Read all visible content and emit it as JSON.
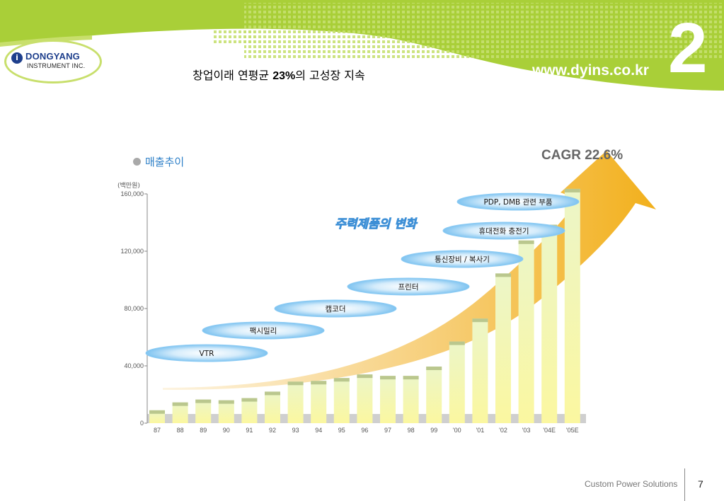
{
  "header": {
    "logo_name": "DONGYANG",
    "logo_sub": "INSTRUMENT INC.",
    "title_prefix": "창업이래 연평균 ",
    "title_highlight": "23%",
    "title_suffix": "의 고성장 지속",
    "site_url": "www.dyins.co.kr",
    "section_number": "2"
  },
  "section": {
    "title": "매출추이"
  },
  "footer": {
    "tagline": "Custom Power Solutions",
    "page_number": "7"
  },
  "colors": {
    "brand_green": "#a9cf38",
    "bar_top": "#ecf6c8",
    "bar_bottom": "#fbf7a0",
    "arrow_orange": "#f3b224",
    "ellipse_blue": "#8ccbf4",
    "title_blue": "#2e80c8"
  },
  "chart_data": {
    "type": "bar",
    "y_unit_label": "(백만원)",
    "categories": [
      "87",
      "88",
      "89",
      "90",
      "91",
      "92",
      "93",
      "94",
      "95",
      "96",
      "97",
      "98",
      "99",
      "'00",
      "'01",
      "'02",
      "'03",
      "'04E",
      "'05E"
    ],
    "values": [
      9000,
      14500,
      16500,
      16000,
      17500,
      22000,
      29000,
      29500,
      31500,
      34000,
      33000,
      33000,
      39500,
      57000,
      73000,
      104500,
      127500,
      138500,
      163500
    ],
    "ylim": [
      0,
      160000
    ],
    "yticks": [
      "0",
      "40,000",
      "80,000",
      "120,000",
      "160,000"
    ],
    "ytick_values": [
      0,
      40000,
      80000,
      120000,
      160000
    ],
    "cagr_label": "CAGR 22.6%",
    "products_title": "주력제품의 변화",
    "products": [
      "VTR",
      "팩시밀리",
      "캠코더",
      "프린터",
      "통신장비 / 복사기",
      "휴대전화 충전기",
      "PDP, DMB 관련 부품"
    ]
  }
}
